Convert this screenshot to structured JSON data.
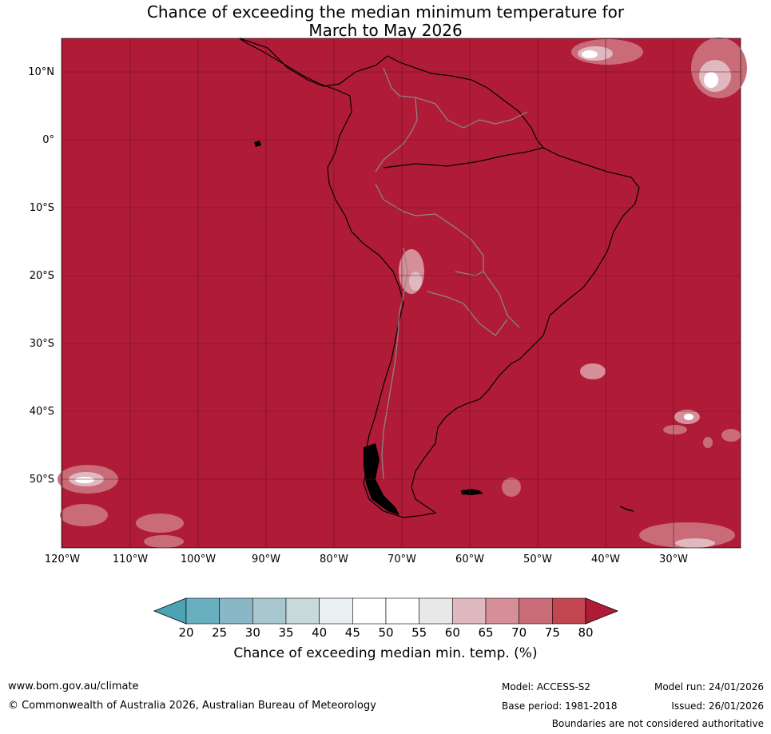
{
  "title_line1": "Chance of exceeding the median minimum temperature for",
  "title_line2": "March to May 2026",
  "lat_labels": [
    "10°N",
    "0°",
    "10°S",
    "20°S",
    "30°S",
    "40°S",
    "50°S"
  ],
  "lon_labels": [
    "120°W",
    "110°W",
    "100°W",
    "90°W",
    "80°W",
    "70°W",
    "60°W",
    "50°W",
    "40°W",
    "30°W"
  ],
  "colorbar": {
    "ticks": [
      "20",
      "25",
      "30",
      "35",
      "40",
      "45",
      "50",
      "55",
      "60",
      "65",
      "70",
      "75",
      "80"
    ],
    "colors": [
      "#4ba3b3",
      "#6aafbf",
      "#8ab7c5",
      "#a9c7ce",
      "#c8d9db",
      "#e9f0f2",
      "#ffffff",
      "#ffffff",
      "#e8e8e8",
      "#e0b8bf",
      "#d68f99",
      "#c96c78",
      "#c2454f",
      "#b01c37"
    ],
    "label": "Chance of exceeding median min. temp. (%)"
  },
  "colors": {
    "ocean_fill": "#b01c37",
    "land_outline": "#000000",
    "border": "#8a8a8a",
    "grid": "#6a1020"
  },
  "footer": {
    "website": "www.bom.gov.au/climate",
    "copyright": "© Commonwealth of Australia 2026, Australian Bureau of Meteorology",
    "model": "Model: ACCESS-S2",
    "base_period": "Base period: 1981-2018",
    "model_run": "Model run: 24/01/2026",
    "issued": "Issued: 26/01/2026",
    "boundaries_note": "Boundaries are not considered authoritative"
  }
}
